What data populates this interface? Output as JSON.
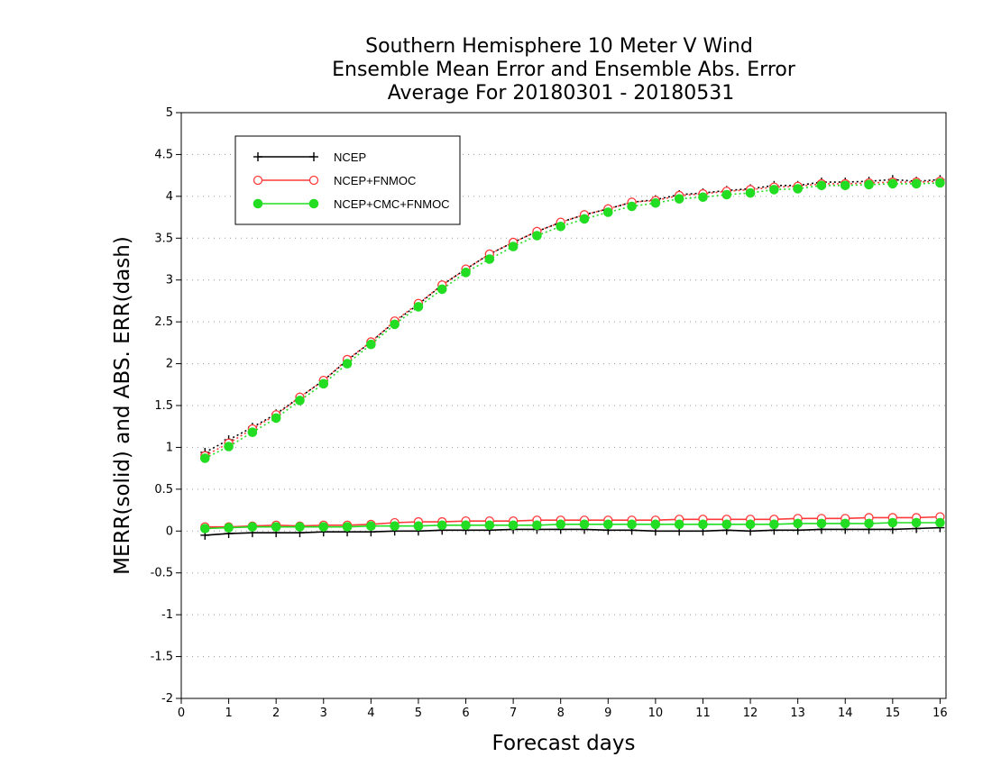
{
  "chart_data": {
    "type": "line",
    "title_lines": [
      "Southern Hemisphere 10 Meter V Wind",
      "Ensemble Mean Error and Ensemble Abs. Error",
      "Average For 20180301 - 20180531"
    ],
    "xlabel": "Forecast days",
    "ylabel": "MERR(solid) and ABS. ERR(dash)",
    "xlim": [
      0,
      16.125
    ],
    "ylim": [
      -2,
      5
    ],
    "x_ticks": [
      "0",
      "1",
      "2",
      "3",
      "4",
      "5",
      "6",
      "7",
      "8",
      "9",
      "10",
      "11",
      "12",
      "13",
      "14",
      "15",
      "16"
    ],
    "y_ticks": [
      "-2",
      "-1.5",
      "-1",
      "-0.5",
      "0",
      "0.5",
      "1",
      "1.5",
      "2",
      "2.5",
      "3",
      "3.5",
      "4",
      "4.5",
      "5"
    ],
    "grid": "horizontal-dotted",
    "legend_position": "top-left",
    "x": [
      0.5,
      1.0,
      1.5,
      2.0,
      2.5,
      3.0,
      3.5,
      4.0,
      4.5,
      5.0,
      5.5,
      6.0,
      6.5,
      7.0,
      7.5,
      8.0,
      8.5,
      9.0,
      9.5,
      10.0,
      10.5,
      11.0,
      11.5,
      12.0,
      12.5,
      13.0,
      13.5,
      14.0,
      14.5,
      15.0,
      15.5,
      16.0
    ],
    "series": [
      {
        "name": "NCEP",
        "color": "#000000",
        "marker": "plus",
        "mean_error": [
          -0.05,
          -0.03,
          -0.02,
          -0.02,
          -0.02,
          -0.01,
          -0.01,
          -0.01,
          0.0,
          0.0,
          0.01,
          0.01,
          0.01,
          0.02,
          0.02,
          0.02,
          0.02,
          0.01,
          0.01,
          0.0,
          0.0,
          0.0,
          0.01,
          0.0,
          0.01,
          0.01,
          0.02,
          0.02,
          0.02,
          0.02,
          0.03,
          0.04
        ],
        "abs_error": [
          0.94,
          1.09,
          1.24,
          1.4,
          1.6,
          1.8,
          2.04,
          2.26,
          2.5,
          2.71,
          2.94,
          3.13,
          3.31,
          3.45,
          3.58,
          3.69,
          3.78,
          3.85,
          3.93,
          3.96,
          4.02,
          4.04,
          4.07,
          4.09,
          4.13,
          4.13,
          4.17,
          4.17,
          4.18,
          4.2,
          4.18,
          4.2
        ]
      },
      {
        "name": "NCEP+FNMOC",
        "color": "#ff3a3a",
        "marker": "open-circle",
        "mean_error": [
          0.05,
          0.05,
          0.06,
          0.07,
          0.06,
          0.07,
          0.07,
          0.08,
          0.1,
          0.11,
          0.11,
          0.12,
          0.12,
          0.12,
          0.13,
          0.13,
          0.13,
          0.13,
          0.13,
          0.13,
          0.14,
          0.14,
          0.14,
          0.14,
          0.14,
          0.15,
          0.15,
          0.15,
          0.16,
          0.16,
          0.16,
          0.17
        ],
        "abs_error": [
          0.9,
          1.05,
          1.22,
          1.39,
          1.6,
          1.8,
          2.05,
          2.26,
          2.51,
          2.72,
          2.94,
          3.13,
          3.31,
          3.45,
          3.58,
          3.69,
          3.78,
          3.85,
          3.93,
          3.95,
          4.01,
          4.03,
          4.06,
          4.08,
          4.11,
          4.12,
          4.15,
          4.15,
          4.16,
          4.17,
          4.17,
          4.18
        ]
      },
      {
        "name": "NCEP+CMC+FNMOC",
        "color": "#22dd22",
        "marker": "filled-circle",
        "mean_error": [
          0.03,
          0.04,
          0.05,
          0.05,
          0.05,
          0.05,
          0.05,
          0.06,
          0.06,
          0.06,
          0.07,
          0.07,
          0.07,
          0.07,
          0.07,
          0.08,
          0.08,
          0.08,
          0.08,
          0.08,
          0.08,
          0.08,
          0.08,
          0.08,
          0.08,
          0.09,
          0.09,
          0.09,
          0.09,
          0.1,
          0.1,
          0.1
        ],
        "abs_error": [
          0.87,
          1.01,
          1.18,
          1.35,
          1.56,
          1.76,
          2.0,
          2.23,
          2.47,
          2.68,
          2.89,
          3.09,
          3.25,
          3.4,
          3.53,
          3.64,
          3.73,
          3.81,
          3.88,
          3.92,
          3.97,
          3.99,
          4.02,
          4.04,
          4.08,
          4.09,
          4.13,
          4.13,
          4.14,
          4.15,
          4.15,
          4.16
        ]
      }
    ]
  }
}
